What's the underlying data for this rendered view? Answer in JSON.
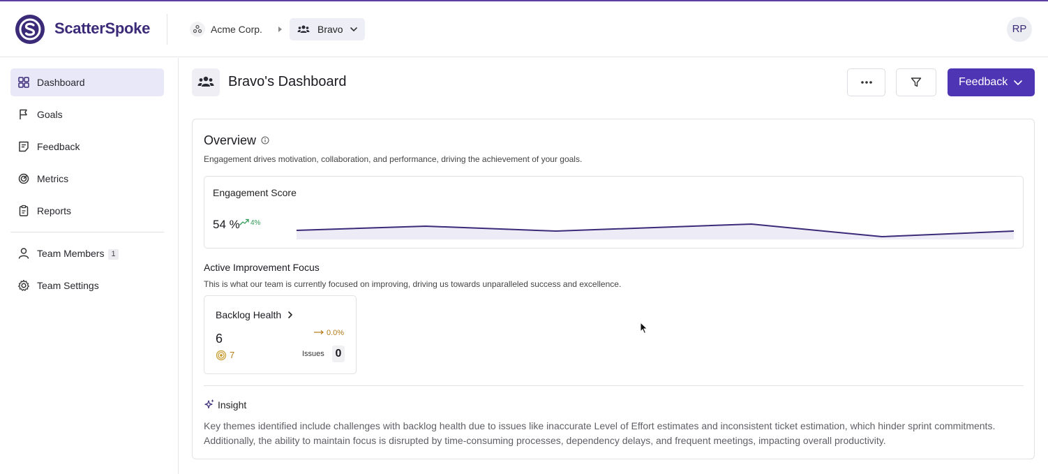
{
  "header": {
    "brand": "ScatterSpoke",
    "org": "Acme Corp.",
    "team": "Bravo",
    "avatar_initials": "RP",
    "accent_color": "#4d35b3"
  },
  "sidebar": {
    "items": [
      {
        "label": "Dashboard",
        "icon": "grid-icon",
        "active": true
      },
      {
        "label": "Goals",
        "icon": "flag-icon"
      },
      {
        "label": "Feedback",
        "icon": "feedback-icon"
      },
      {
        "label": "Metrics",
        "icon": "metrics-icon"
      },
      {
        "label": "Reports",
        "icon": "clipboard-icon"
      }
    ],
    "team_items": [
      {
        "label": "Team Members",
        "icon": "person-icon",
        "badge": "1"
      },
      {
        "label": "Team Settings",
        "icon": "gear-icon"
      }
    ]
  },
  "page": {
    "title": "Bravo's Dashboard",
    "feedback_button": "Feedback"
  },
  "overview": {
    "title": "Overview",
    "description": "Engagement drives motivation, collaboration, and performance, driving the achievement of your goals.",
    "engagement": {
      "title": "Engagement Score",
      "value": "54 %",
      "delta": "4%",
      "trend_color": "#2f9a56"
    }
  },
  "improvement": {
    "title": "Active Improvement Focus",
    "description": "This is what our team is currently focused on improving, driving us towards unparalleled success and excellence.",
    "focus": {
      "title": "Backlog Health",
      "value": "6",
      "target": "7",
      "delta": "0.0%",
      "issues_label": "Issues",
      "issues_count": "0"
    }
  },
  "insight": {
    "title": "Insight",
    "text": "Key themes identified include challenges with backlog health due to issues like inaccurate Level of Effort estimates and inconsistent ticket estimation, which hinder sprint commitments. Additionally, the ability to maintain focus is disrupted by time-consuming processes, dependency delays, and frequent meetings, impacting overall productivity."
  }
}
